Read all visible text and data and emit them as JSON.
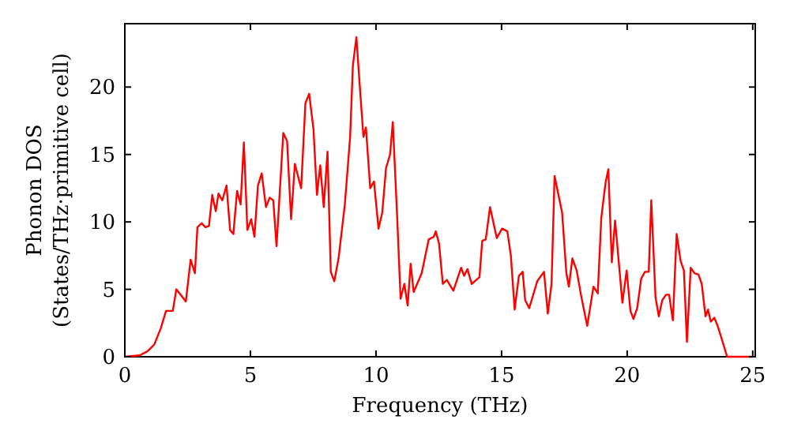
{
  "chart_data": {
    "type": "line",
    "xlabel": "Frequency (THz)",
    "ylabel": "Phonon DOS\n(States/THz·primitive cell)",
    "xlim": [
      0,
      25.1
    ],
    "ylim": [
      0,
      24.7
    ],
    "xticks": [
      0,
      5,
      10,
      15,
      20,
      25
    ],
    "yticks": [
      0,
      5,
      10,
      15,
      20
    ],
    "grid": false,
    "marker": "none",
    "line_style": "solid",
    "series": [
      {
        "color": "#ff0000",
        "x": [
          0,
          0.59,
          0.9,
          1.17,
          1.43,
          1.64,
          1.91,
          2.05,
          2.43,
          2.62,
          2.79,
          2.89,
          3.06,
          3.21,
          3.35,
          3.48,
          3.62,
          3.73,
          3.88,
          4.05,
          4.19,
          4.32,
          4.47,
          4.61,
          4.74,
          4.88,
          5.03,
          5.16,
          5.3,
          5.45,
          5.62,
          5.77,
          5.91,
          6.04,
          6.31,
          6.46,
          6.62,
          6.77,
          7.02,
          7.19,
          7.34,
          7.51,
          7.65,
          7.78,
          7.92,
          8.07,
          8.2,
          8.34,
          8.51,
          8.76,
          8.97,
          9.08,
          9.22,
          9.35,
          9.5,
          9.6,
          9.77,
          9.92,
          10.1,
          10.25,
          10.4,
          10.56,
          10.67,
          10.84,
          10.98,
          11.13,
          11.26,
          11.38,
          11.5,
          11.82,
          12.1,
          12.3,
          12.38,
          12.51,
          12.66,
          12.82,
          13.08,
          13.39,
          13.51,
          13.64,
          13.81,
          14.12,
          14.23,
          14.37,
          14.54,
          14.81,
          15.02,
          15.23,
          15.37,
          15.52,
          15.69,
          15.84,
          15.94,
          16.1,
          16.42,
          16.69,
          16.84,
          16.99,
          17.11,
          17.41,
          17.58,
          17.68,
          17.82,
          17.99,
          18.16,
          18.41,
          18.66,
          18.83,
          18.97,
          19.14,
          19.25,
          19.39,
          19.52,
          19.81,
          19.98,
          20.13,
          20.25,
          20.4,
          20.56,
          20.71,
          20.86,
          20.96,
          21.13,
          21.26,
          21.4,
          21.55,
          21.67,
          21.82,
          21.97,
          22.13,
          22.26,
          22.38,
          22.53,
          22.68,
          22.84,
          22.97,
          23.12,
          23.22,
          23.33,
          23.47,
          23.6,
          23.77,
          23.98,
          25
        ],
        "values": [
          0,
          0.1,
          0.4,
          0.9,
          2.1,
          3.4,
          3.4,
          5,
          4.1,
          7.2,
          6.2,
          9.6,
          9.9,
          9.6,
          9.7,
          12,
          10.8,
          12.1,
          11.6,
          12.7,
          9.4,
          9.1,
          12.3,
          11.3,
          15.9,
          9.4,
          10.2,
          8.9,
          12.7,
          13.6,
          11.1,
          11.8,
          11.6,
          8.2,
          16.6,
          16,
          10.2,
          14.3,
          12.5,
          18.8,
          19.5,
          16.9,
          12,
          14.2,
          11.1,
          15.2,
          6.3,
          5.6,
          7.3,
          11.3,
          16.3,
          21.6,
          23.7,
          20.2,
          16.3,
          17,
          12.5,
          13,
          9.5,
          10.7,
          14,
          15,
          17.4,
          10.5,
          4.3,
          5.4,
          3.8,
          6.9,
          4.8,
          6.2,
          8.7,
          8.9,
          9.3,
          8.4,
          5.4,
          5.7,
          4.9,
          6.6,
          6,
          6.5,
          5.4,
          5.9,
          8.6,
          8.7,
          11.1,
          8.8,
          9.5,
          9.3,
          7.5,
          3.5,
          6,
          6.3,
          4.2,
          3.6,
          5.6,
          6.3,
          3.2,
          5.4,
          13.4,
          10.7,
          6.2,
          5.2,
          7.3,
          6.4,
          4.6,
          2.3,
          5.2,
          4.7,
          10.3,
          12.9,
          13.9,
          7,
          10.1,
          4,
          6.4,
          3.4,
          2.8,
          3.6,
          5.8,
          6.3,
          6.3,
          11.6,
          4.4,
          3,
          4.2,
          4.6,
          4.6,
          2.7,
          9.1,
          7.1,
          6.4,
          1.1,
          6.6,
          6.2,
          6.1,
          5.4,
          3,
          3.5,
          2.6,
          2.9,
          2.3,
          1.3,
          0,
          0
        ]
      }
    ]
  }
}
